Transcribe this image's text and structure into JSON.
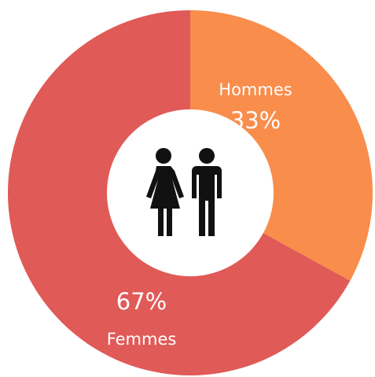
{
  "chart_data": {
    "type": "donut",
    "categories": [
      "Hommes",
      "Femmes"
    ],
    "values": [
      33,
      67
    ],
    "value_labels": [
      "33%",
      "67%"
    ],
    "colors": [
      "#f98d4b",
      "#e05a57"
    ]
  }
}
